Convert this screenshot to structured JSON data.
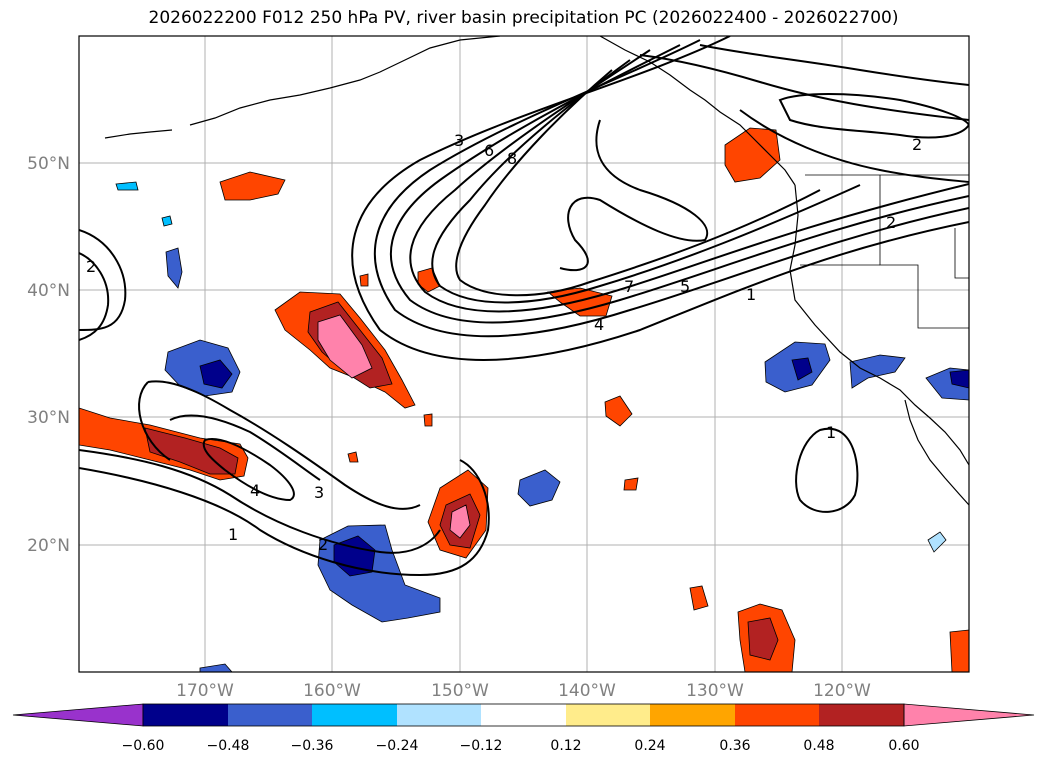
{
  "title": "2026022200 F012 250 hPa PV, river basin precipitation PC (2026022400 - 2026022700)",
  "map": {
    "lat_labels": [
      "50°N",
      "40°N",
      "30°N",
      "20°N"
    ],
    "lon_labels": [
      "170°W",
      "160°W",
      "150°W",
      "140°W",
      "130°W",
      "120°W"
    ],
    "contour_labels": [
      "3",
      "6",
      "8",
      "7",
      "5",
      "4",
      "1",
      "2",
      "2",
      "2",
      "4",
      "3",
      "2",
      "1",
      "1"
    ]
  },
  "colorbar": {
    "colors": [
      "#9932cc",
      "#00008b",
      "#3a5fcd",
      "#00bfff",
      "#b0e2ff",
      "#ffffff",
      "#ffec8b",
      "#ffa500",
      "#ff4500",
      "#b22222",
      "#ff82ab",
      "#ff82ab"
    ],
    "tick_labels": [
      "−0.60",
      "−0.48",
      "−0.36",
      "−0.24",
      "−0.12",
      "0.12",
      "0.24",
      "0.36",
      "0.48",
      "0.60"
    ]
  }
}
